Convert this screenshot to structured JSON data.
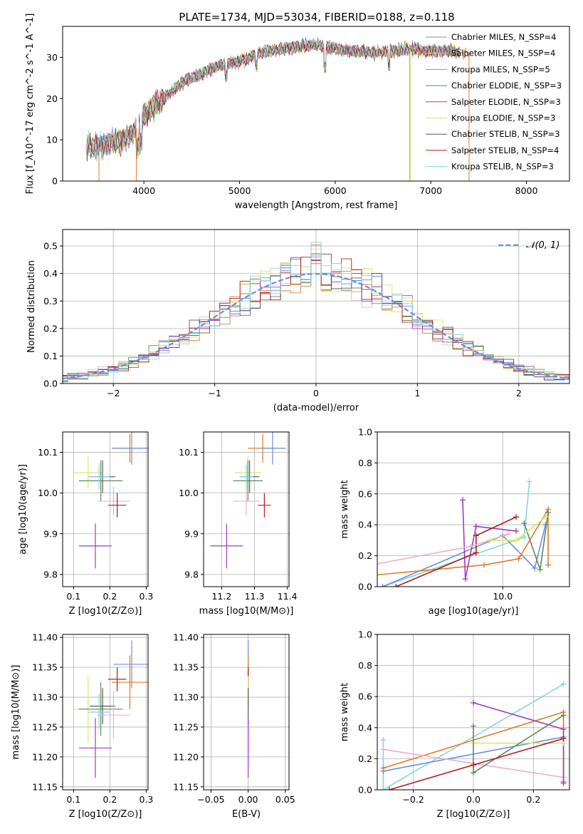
{
  "figure": {
    "title": "PLATE=1734, MJD=53034, FIBERID=0188, z=0.118"
  },
  "colors": {
    "c_miles": "#6a8fdd",
    "s_miles": "#e8b0d0",
    "k_miles": "#e07b2a",
    "c_elodie": "#5d8a5d",
    "s_elodie": "#a03cc0",
    "k_elodie": "#d9e866",
    "c_stelib": "#595959",
    "s_stelib": "#b01c1c",
    "k_stelib": "#86d4de",
    "normal_curve": "#6a8fdd"
  },
  "chart_data": [
    {
      "id": "spectrum",
      "type": "line",
      "xlabel": "wavelength [Angstrom, rest frame]",
      "ylabel": "Flux [f_λ10^-17 erg cm^-2 s^-1 A^-1]",
      "xlim": [
        3150,
        8450
      ],
      "ylim": [
        0,
        37.5
      ],
      "xticks": [
        4000,
        5000,
        6000,
        7000,
        8000
      ],
      "yticks": [
        0,
        10,
        20,
        30
      ],
      "grid": false,
      "legend_position": "top-right",
      "legend": [
        "Chabrier MILES, N_SSP=4",
        "Salpeter MILES, N_SSP=4",
        "Kroupa MILES, N_SSP=5",
        "Chabrier ELODIE, N_SSP=3",
        "Salpeter ELODIE, N_SSP=3",
        "Kroupa ELODIE, N_SSP=3",
        "Chabrier STELIB, N_SSP=3",
        "Salpeter STELIB, N_SSP=4",
        "Kroupa STELIB, N_SSP=3"
      ],
      "continuum": {
        "x": [
          3400,
          3600,
          3800,
          3900,
          4000,
          4200,
          4400,
          4600,
          4800,
          5000,
          5200,
          5400,
          5600,
          5800,
          6000,
          6200,
          6400,
          6600,
          6800,
          7000,
          7200,
          7300
        ],
        "y": [
          8,
          9,
          10,
          12,
          16,
          20,
          24,
          26,
          28,
          29,
          31,
          32,
          32.5,
          33,
          32,
          31.5,
          31,
          31.5,
          32,
          31.5,
          31.5,
          31
        ]
      },
      "drops_to_zero_at": [
        3530,
        3920,
        6780,
        7400
      ]
    },
    {
      "id": "residuals",
      "type": "bar",
      "xlabel": "(data-model)/error",
      "ylabel": "Normed distribution",
      "xlim": [
        -2.5,
        2.5
      ],
      "ylim": [
        0,
        0.56
      ],
      "xticks": [
        -2,
        -1,
        0,
        1,
        2
      ],
      "yticks": [
        0.0,
        0.1,
        0.2,
        0.3,
        0.4,
        0.5
      ],
      "grid": true,
      "legend_position": "top-right",
      "legend": [
        "𝒩(0, 1)"
      ],
      "bin_width": 0.1
    },
    {
      "id": "age-vs-Z",
      "type": "scatter",
      "xlabel": "Z [log10(Z/Z⊙)]",
      "ylabel": "age [log10(age/yr)]",
      "xlim": [
        0.07,
        0.305
      ],
      "ylim": [
        9.77,
        10.15
      ],
      "xticks": [
        0.1,
        0.2,
        0.3
      ],
      "yticks": [
        9.8,
        9.9,
        10.0,
        10.1
      ],
      "grid": true,
      "points": [
        {
          "x": 0.255,
          "y": 10.11,
          "xerr": 0.05,
          "yerr": 0.035,
          "color": "k_miles"
        },
        {
          "x": 0.26,
          "y": 10.11,
          "xerr": 0.05,
          "yerr": 0.04,
          "color": "c_miles"
        },
        {
          "x": 0.14,
          "y": 10.05,
          "xerr": 0.04,
          "yerr": 0.04,
          "color": "k_elodie"
        },
        {
          "x": 0.175,
          "y": 10.03,
          "xerr": 0.06,
          "yerr": 0.05,
          "color": "c_elodie"
        },
        {
          "x": 0.18,
          "y": 10.04,
          "xerr": 0.035,
          "yerr": 0.04,
          "color": "c_stelib"
        },
        {
          "x": 0.17,
          "y": 10.04,
          "xerr": 0.03,
          "yerr": 0.03,
          "color": "k_stelib"
        },
        {
          "x": 0.21,
          "y": 9.98,
          "xerr": 0.045,
          "yerr": 0.035,
          "color": "s_miles"
        },
        {
          "x": 0.22,
          "y": 9.97,
          "xerr": 0.025,
          "yerr": 0.03,
          "color": "s_stelib"
        },
        {
          "x": 0.16,
          "y": 9.87,
          "xerr": 0.045,
          "yerr": 0.055,
          "color": "s_elodie"
        }
      ]
    },
    {
      "id": "age-vs-mass",
      "type": "scatter",
      "xlabel": "mass [log10(M/M⊙)]",
      "ylabel": "",
      "xlim": [
        11.145,
        11.405
      ],
      "ylim": [
        9.77,
        10.15
      ],
      "xticks": [
        11.2,
        11.3,
        11.4
      ],
      "yticks": [
        9.8,
        9.9,
        10.0,
        10.1
      ],
      "grid": true,
      "points": [
        {
          "x": 11.325,
          "y": 10.11,
          "xerr": 0.045,
          "yerr": 0.035,
          "color": "k_miles"
        },
        {
          "x": 11.355,
          "y": 10.11,
          "xerr": 0.04,
          "yerr": 0.04,
          "color": "c_miles"
        },
        {
          "x": 11.28,
          "y": 10.05,
          "xerr": 0.04,
          "yerr": 0.04,
          "color": "k_elodie"
        },
        {
          "x": 11.28,
          "y": 10.03,
          "xerr": 0.045,
          "yerr": 0.05,
          "color": "c_elodie"
        },
        {
          "x": 11.285,
          "y": 10.04,
          "xerr": 0.03,
          "yerr": 0.04,
          "color": "c_stelib"
        },
        {
          "x": 11.275,
          "y": 10.04,
          "xerr": 0.02,
          "yerr": 0.03,
          "color": "k_stelib"
        },
        {
          "x": 11.275,
          "y": 9.98,
          "xerr": 0.04,
          "yerr": 0.035,
          "color": "s_miles"
        },
        {
          "x": 11.33,
          "y": 9.97,
          "xerr": 0.02,
          "yerr": 0.03,
          "color": "s_stelib"
        },
        {
          "x": 11.215,
          "y": 9.87,
          "xerr": 0.05,
          "yerr": 0.055,
          "color": "s_elodie"
        }
      ]
    },
    {
      "id": "weight-vs-age",
      "type": "line",
      "xlabel": "age [log10(age/yr)]",
      "ylabel": "mass weight",
      "xlim": [
        9.53,
        10.25
      ],
      "ylim": [
        0,
        1.0
      ],
      "xticks": [
        9.0,
        9.5,
        10.0
      ],
      "yticks": [
        0.0,
        0.2,
        0.4,
        0.6,
        0.8,
        1.0
      ],
      "grid": true,
      "series": [
        {
          "color": "k_stelib",
          "x": [
            9.55,
            10.08,
            10.1
          ],
          "y": [
            0.0,
            0.32,
            0.68
          ]
        },
        {
          "color": "c_miles",
          "x": [
            9.55,
            10.0,
            10.12,
            10.16
          ],
          "y": [
            0.0,
            0.33,
            0.12,
            0.4
          ]
        },
        {
          "color": "k_miles",
          "x": [
            9.3,
            9.93,
            10.06,
            10.17,
            10.17
          ],
          "y": [
            0.04,
            0.14,
            0.18,
            0.5,
            0.14
          ]
        },
        {
          "color": "s_elodie",
          "x": [
            9.85,
            9.86,
            9.9,
            10.05
          ],
          "y": [
            0.56,
            0.05,
            0.39,
            0.36
          ]
        },
        {
          "color": "s_stelib",
          "x": [
            9.6,
            9.9,
            9.9,
            10.05
          ],
          "y": [
            0.0,
            0.22,
            0.33,
            0.45
          ]
        },
        {
          "color": "c_elodie",
          "x": [
            10.08,
            10.14,
            10.17
          ],
          "y": [
            0.41,
            0.11,
            0.48
          ]
        },
        {
          "color": "s_miles",
          "x": [
            9.32,
            9.88,
            10.02
          ],
          "y": [
            0.08,
            0.26,
            0.34
          ]
        },
        {
          "color": "k_elodie",
          "x": [
            9.95,
            10.05,
            10.16
          ],
          "y": [
            0.3,
            0.3,
            0.45
          ]
        }
      ]
    },
    {
      "id": "mass-vs-Z",
      "type": "scatter",
      "xlabel": "Z [log10(Z/Z⊙)]",
      "ylabel": "mass [log10(M/M⊙)]",
      "xlim": [
        0.07,
        0.305
      ],
      "ylim": [
        11.145,
        11.405
      ],
      "xticks": [
        0.1,
        0.2,
        0.3
      ],
      "yticks": [
        11.15,
        11.2,
        11.25,
        11.3,
        11.35,
        11.4
      ],
      "grid": true,
      "points": [
        {
          "x": 0.26,
          "y": 11.355,
          "xerr": 0.05,
          "yerr": 0.04,
          "color": "c_miles"
        },
        {
          "x": 0.255,
          "y": 11.325,
          "xerr": 0.05,
          "yerr": 0.045,
          "color": "k_miles"
        },
        {
          "x": 0.22,
          "y": 11.33,
          "xerr": 0.025,
          "yerr": 0.02,
          "color": "s_stelib"
        },
        {
          "x": 0.14,
          "y": 11.28,
          "xerr": 0.04,
          "yerr": 0.055,
          "color": "k_elodie"
        },
        {
          "x": 0.175,
          "y": 11.28,
          "xerr": 0.06,
          "yerr": 0.045,
          "color": "c_elodie"
        },
        {
          "x": 0.18,
          "y": 11.285,
          "xerr": 0.035,
          "yerr": 0.03,
          "color": "c_stelib"
        },
        {
          "x": 0.17,
          "y": 11.275,
          "xerr": 0.03,
          "yerr": 0.03,
          "color": "k_stelib"
        },
        {
          "x": 0.21,
          "y": 11.27,
          "xerr": 0.045,
          "yerr": 0.04,
          "color": "s_miles"
        },
        {
          "x": 0.16,
          "y": 11.215,
          "xerr": 0.045,
          "yerr": 0.05,
          "color": "s_elodie"
        }
      ]
    },
    {
      "id": "mass-vs-ebv",
      "type": "scatter",
      "xlabel": "E(B-V)",
      "ylabel": "",
      "xlim": [
        -0.06,
        0.055
      ],
      "ylim": [
        11.145,
        11.405
      ],
      "xticks": [
        -0.05,
        0.0,
        0.05
      ],
      "yticks": [
        11.15,
        11.2,
        11.25,
        11.3,
        11.35,
        11.4
      ],
      "grid": true,
      "points": [
        {
          "x": 0.0,
          "y": 11.355,
          "xerr": 0,
          "yerr": 0.04,
          "color": "c_miles"
        },
        {
          "x": 0.0,
          "y": 11.325,
          "xerr": 0,
          "yerr": 0.045,
          "color": "k_miles"
        },
        {
          "x": 0.0,
          "y": 11.33,
          "xerr": 0,
          "yerr": 0.02,
          "color": "s_stelib"
        },
        {
          "x": 0.0,
          "y": 11.28,
          "xerr": 0,
          "yerr": 0.055,
          "color": "k_elodie"
        },
        {
          "x": 0.0,
          "y": 11.285,
          "xerr": 0,
          "yerr": 0.03,
          "color": "c_stelib"
        },
        {
          "x": 0.0,
          "y": 11.215,
          "xerr": 0,
          "yerr": 0.05,
          "color": "s_elodie"
        }
      ]
    },
    {
      "id": "weight-vs-Z",
      "type": "line",
      "xlabel": "Z [log10(Z/Z⊙)]",
      "ylabel": "mass weight",
      "xlim": [
        -0.32,
        0.32
      ],
      "ylim": [
        0,
        1.0
      ],
      "xticks": [
        -0.2,
        0.0,
        0.2
      ],
      "yticks": [
        0.0,
        0.2,
        0.4,
        0.6,
        0.8,
        1.0
      ],
      "grid": true,
      "series": [
        {
          "color": "k_stelib",
          "x": [
            -0.3,
            -0.3,
            0.3
          ],
          "y": [
            0.32,
            0.0,
            0.68
          ]
        },
        {
          "color": "c_miles",
          "x": [
            -0.3,
            0.3
          ],
          "y": [
            0.12,
            0.34
          ]
        },
        {
          "color": "k_miles",
          "x": [
            -0.3,
            0.3,
            0.3
          ],
          "y": [
            0.14,
            0.5,
            0.04
          ]
        },
        {
          "color": "s_miles",
          "x": [
            -0.3,
            0.3
          ],
          "y": [
            0.26,
            0.08
          ]
        },
        {
          "color": "s_elodie",
          "x": [
            0.0,
            0.3,
            0.3
          ],
          "y": [
            0.56,
            0.39,
            0.05
          ]
        },
        {
          "color": "k_elodie",
          "x": [
            0.0,
            0.0,
            0.3
          ],
          "y": [
            0.4,
            0.3,
            0.3
          ]
        },
        {
          "color": "c_elodie",
          "x": [
            0.0,
            0.0,
            0.3
          ],
          "y": [
            0.41,
            0.11,
            0.48
          ]
        },
        {
          "color": "s_stelib",
          "x": [
            -0.28,
            0.0,
            0.3
          ],
          "y": [
            0.0,
            0.16,
            0.33
          ]
        }
      ]
    }
  ]
}
